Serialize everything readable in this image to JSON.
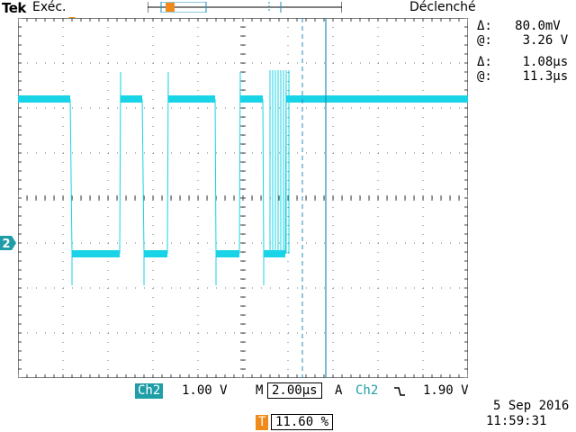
{
  "header": {
    "brand": "Tek",
    "run_state": "Exéc.",
    "trigger_state": "Déclenché"
  },
  "cursors": {
    "voltage": {
      "delta_label": "Δ:",
      "delta_value": "80.0mV",
      "at_label": "@:",
      "at_value": "3.26 V"
    },
    "time": {
      "delta_label": "Δ:",
      "delta_value": "1.08µs",
      "at_label": "@:",
      "at_value": "11.3µs"
    }
  },
  "channel_marker": {
    "label": "2",
    "color": "#1f9ea8"
  },
  "trigger_marker_icon": "trigger-position-T-icon",
  "bottom": {
    "channel_badge": "Ch2",
    "volts_per_div": "1.00 V",
    "timebase_prefix": "M",
    "timebase": "2.00µs",
    "trigger_mode": "A",
    "trigger_source": "Ch2",
    "trigger_slope_icon": "falling-edge-icon",
    "trigger_level": "1.90 V",
    "trigger_position_icon": "T",
    "trigger_position": "11.60 %",
    "date": "5 Sep  2016",
    "time": "11:59:31"
  },
  "colors": {
    "trace": "#19d3e6",
    "cursor": "#1f8fb8",
    "marker_orange": "#f08a1a",
    "badge": "#1f9ea8"
  }
}
